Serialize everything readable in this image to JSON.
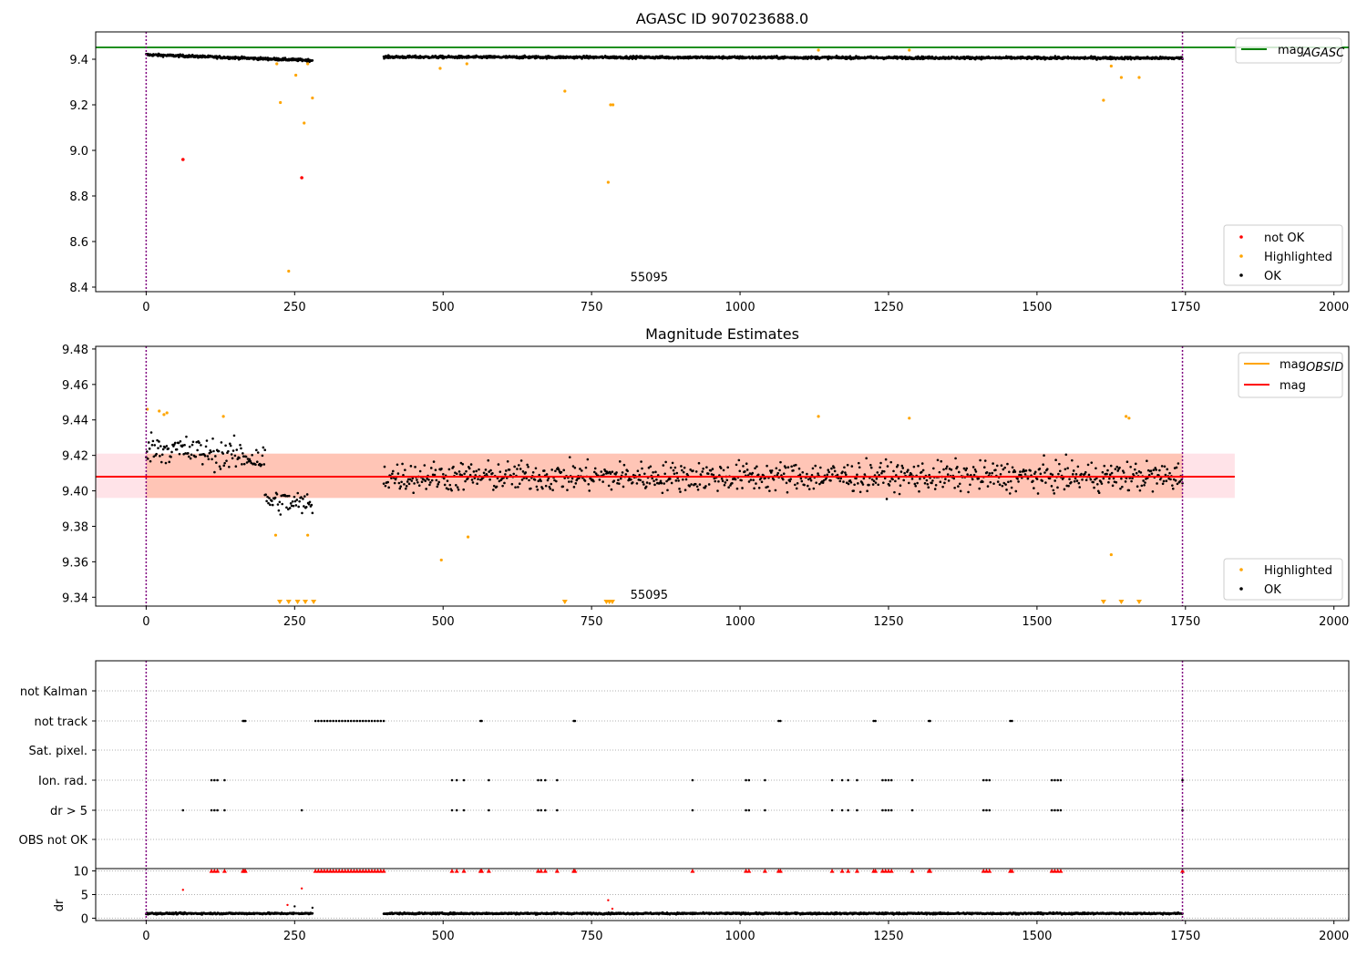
{
  "chart_data": [
    {
      "panel": "agasc",
      "type": "scatter",
      "title": "AGASC ID 907023688.0",
      "xlim": [
        -85,
        2025
      ],
      "ylim": [
        8.38,
        9.52
      ],
      "xticks": [
        0,
        250,
        500,
        750,
        1000,
        1250,
        1500,
        1750,
        2000
      ],
      "xticklabels": [
        "0",
        "250",
        "500",
        "750",
        "1000",
        "1250",
        "1500",
        "1750",
        "2000"
      ],
      "yticks": [
        8.4,
        8.6,
        8.8,
        9.0,
        9.2,
        9.4
      ],
      "yticklabels": [
        "8.4",
        "8.6",
        "8.8",
        "9.0",
        "9.2",
        "9.4"
      ],
      "vlines": [
        0,
        1745
      ],
      "annotation": {
        "text": "55095",
        "x": 870,
        "y": 8.41
      },
      "hline": {
        "name": "mag_AGASC",
        "y": 9.452,
        "color": "#008000"
      },
      "legend_lines": [
        {
          "label": "mag",
          "sub": "AGASC",
          "color": "#008000"
        }
      ],
      "legend_markers": [
        {
          "label": "not OK",
          "color": "#ff0000"
        },
        {
          "label": "Highlighted",
          "color": "#ffa500"
        },
        {
          "label": "OK",
          "color": "#000000"
        }
      ],
      "legend_line_placement": "upper right",
      "legend_marker_placement": "lower right",
      "ok_segments": [
        {
          "x": [
            0,
            280
          ],
          "y_start": 9.42,
          "y_end": 9.395,
          "spread": 0.008
        },
        {
          "x": [
            400,
            1745
          ],
          "y_start": 9.41,
          "y_end": 9.405,
          "spread": 0.008
        }
      ],
      "highlighted": {
        "x": [
          220,
          226,
          252,
          266,
          272,
          280,
          495,
          540,
          705,
          782,
          786,
          778,
          1132,
          1285,
          1612,
          1625,
          1642,
          1672,
          240
        ],
        "y": [
          9.38,
          9.21,
          9.33,
          9.12,
          9.38,
          9.23,
          9.36,
          9.38,
          9.26,
          9.2,
          9.2,
          8.86,
          9.44,
          9.44,
          9.22,
          9.37,
          9.32,
          9.32,
          8.47
        ]
      },
      "not_ok": {
        "x": [
          62,
          262
        ],
        "y": [
          8.96,
          8.88
        ]
      }
    },
    {
      "panel": "estimates",
      "type": "scatter",
      "title": "Magnitude Estimates",
      "xlim": [
        -85,
        2025
      ],
      "ylim": [
        9.335,
        9.4815
      ],
      "xticks": [
        0,
        250,
        500,
        750,
        1000,
        1250,
        1500,
        1750,
        2000
      ],
      "xticklabels": [
        "0",
        "250",
        "500",
        "750",
        "1000",
        "1250",
        "1500",
        "1750",
        "2000"
      ],
      "yticks": [
        9.34,
        9.36,
        9.38,
        9.4,
        9.42,
        9.44,
        9.46,
        9.48
      ],
      "yticklabels": [
        "9.34",
        "9.36",
        "9.38",
        "9.40",
        "9.42",
        "9.44",
        "9.46",
        "9.48"
      ],
      "vlines": [
        0,
        1745
      ],
      "annotation": {
        "text": "55095",
        "x": 870,
        "y": 9.3375
      },
      "mag": {
        "value": 9.408,
        "x_range": [
          -85,
          1833
        ]
      },
      "mag_band": {
        "low": 9.396,
        "high": 9.421
      },
      "legend_lines": [
        {
          "label": "mag",
          "sub": "OBSID",
          "color": "#ffa500"
        },
        {
          "label": "mag",
          "sub": "",
          "color": "#ff0000"
        }
      ],
      "legend_markers": [
        {
          "label": "Highlighted",
          "color": "#ffa500"
        },
        {
          "label": "OK",
          "color": "#000000"
        }
      ],
      "legend_line_placement": "upper right",
      "legend_marker_placement": "lower right",
      "ok_segments": [
        {
          "x": [
            0,
            200
          ],
          "y_start": 9.425,
          "y_end": 9.418,
          "spread": 0.012
        },
        {
          "x": [
            200,
            280
          ],
          "y_start": 9.395,
          "y_end": 9.392,
          "spread": 0.01
        },
        {
          "x": [
            400,
            1745
          ],
          "y_start": 9.408,
          "y_end": 9.408,
          "spread": 0.012
        }
      ],
      "highlighted": {
        "x": [
          2,
          22,
          30,
          35,
          130,
          218,
          272,
          497,
          542,
          1132,
          1285,
          1625,
          1650,
          1655
        ],
        "y": [
          9.446,
          9.445,
          9.443,
          9.444,
          9.442,
          9.375,
          9.375,
          9.361,
          9.374,
          9.442,
          9.441,
          9.364,
          9.442,
          9.441
        ]
      },
      "below_range_markers": [
        225,
        240,
        255,
        268,
        282,
        705,
        775,
        780,
        785,
        1612,
        1642,
        1672
      ]
    },
    {
      "panel": "flags",
      "type": "scatter",
      "xlim": [
        -85,
        2025
      ],
      "categories": [
        "not Kalman",
        "not track",
        "Sat. pixel.",
        "Ion. rad.",
        "dr > 5",
        "OBS not OK"
      ],
      "vlines": [
        0,
        1745
      ],
      "flag_points": {
        "not Kalman": [],
        "not track": [
          163,
          165,
          167,
          285,
          290,
          295,
          300,
          305,
          310,
          315,
          320,
          325,
          330,
          335,
          340,
          345,
          350,
          355,
          360,
          365,
          370,
          375,
          380,
          385,
          390,
          395,
          400,
          563,
          565,
          720,
          722,
          1065,
          1068,
          1225,
          1228,
          1318,
          1320,
          1455,
          1458
        ],
        "Sat. pixel.": [],
        "Ion. rad.": [
          110,
          115,
          120,
          132,
          515,
          523,
          535,
          577,
          660,
          665,
          672,
          692,
          920,
          1010,
          1015,
          1042,
          1155,
          1172,
          1182,
          1197,
          1240,
          1245,
          1250,
          1255,
          1290,
          1410,
          1415,
          1420,
          1525,
          1530,
          1535,
          1540,
          1745
        ],
        "dr > 5": [
          62,
          110,
          115,
          120,
          132,
          262,
          515,
          523,
          535,
          577,
          660,
          665,
          672,
          692,
          920,
          1010,
          1015,
          1042,
          1155,
          1172,
          1182,
          1197,
          1240,
          1245,
          1250,
          1255,
          1290,
          1410,
          1415,
          1420,
          1525,
          1530,
          1535,
          1540,
          1745
        ],
        "OBS not OK": []
      }
    },
    {
      "panel": "dr",
      "type": "scatter",
      "ylabel": "dr",
      "xlim": [
        -85,
        2025
      ],
      "ylim": [
        -0.5,
        10.5
      ],
      "xticks": [
        0,
        250,
        500,
        750,
        1000,
        1250,
        1500,
        1750,
        2000
      ],
      "xticklabels": [
        "0",
        "250",
        "500",
        "750",
        "1000",
        "1250",
        "1500",
        "1750",
        "2000"
      ],
      "yticks": [
        0,
        5,
        10
      ],
      "yticklabels": [
        "0",
        "5",
        "10"
      ],
      "vlines": [
        0,
        1745
      ],
      "ok_segments": [
        {
          "x": [
            0,
            280
          ],
          "y_start": 1.0,
          "y_end": 1.0,
          "spread": 0.25
        },
        {
          "x": [
            400,
            1745
          ],
          "y_start": 1.0,
          "y_end": 1.0,
          "spread": 0.25
        }
      ],
      "red_top": [
        110,
        115,
        120,
        132,
        163,
        165,
        167,
        285,
        290,
        295,
        300,
        305,
        310,
        315,
        320,
        325,
        330,
        335,
        340,
        345,
        350,
        355,
        360,
        365,
        370,
        375,
        380,
        385,
        390,
        395,
        400,
        515,
        523,
        535,
        563,
        565,
        577,
        660,
        665,
        672,
        692,
        720,
        722,
        920,
        1010,
        1015,
        1042,
        1065,
        1068,
        1155,
        1172,
        1182,
        1197,
        1225,
        1228,
        1240,
        1245,
        1250,
        1255,
        1290,
        1318,
        1320,
        1410,
        1415,
        1420,
        1455,
        1458,
        1525,
        1530,
        1535,
        1540,
        1745
      ],
      "red_points": {
        "x": [
          62,
          238,
          262,
          778,
          785
        ],
        "y": [
          6.0,
          2.8,
          6.3,
          3.8,
          2.0
        ]
      },
      "black_extra": {
        "x": [
          250,
          280
        ],
        "y": [
          2.5,
          2.2
        ]
      }
    }
  ]
}
